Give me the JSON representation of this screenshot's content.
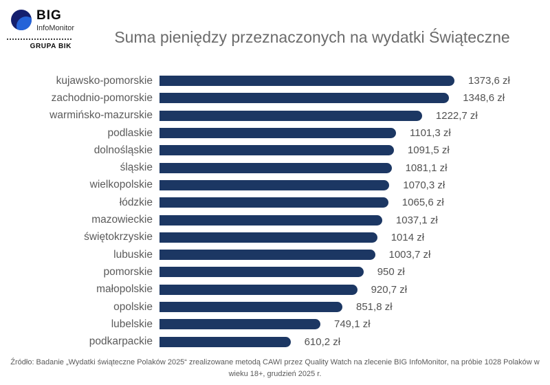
{
  "logo": {
    "big": "BIG",
    "infomonitor": "InfoMonitor",
    "grupa": "GRUPA BIK"
  },
  "header": {
    "title": "Suma pieniędzy przeznaczonych na wydatki Świąteczne"
  },
  "chart_data": {
    "type": "bar",
    "orientation": "horizontal",
    "title": "Suma pieniędzy przeznaczonych na wydatki Świąteczne",
    "unit": "zł",
    "xlim": [
      0,
      1400
    ],
    "grid": false,
    "bar_color": "#1c3763",
    "categories": [
      "kujawsko-pomorskie",
      "zachodnio-pomorskie",
      "warmińsko-mazurskie",
      "podlaskie",
      "dolnośląskie",
      "śląskie",
      "wielkopolskie",
      "łódzkie",
      "mazowieckie",
      "świętokrzyskie",
      "lubuskie",
      "pomorskie",
      "małopolskie",
      "opolskie",
      "lubelskie",
      "podkarpackie"
    ],
    "values": [
      1373.6,
      1348.6,
      1222.7,
      1101.3,
      1091.5,
      1081.1,
      1070.3,
      1065.6,
      1037.1,
      1014,
      1003.7,
      950,
      920.7,
      851.8,
      749.1,
      610.2
    ],
    "value_labels": [
      "1373,6 zł",
      "1348,6 zł",
      "1222,7 zł",
      "1101,3 zł",
      "1091,5 zł",
      "1081,1 zł",
      "1070,3 zł",
      "1065,6 zł",
      "1037,1 zł",
      "1014 zł",
      "1003,7 zł",
      "950 zł",
      "920,7 zł",
      "851,8 zł",
      "749,1 zł",
      "610,2 zł"
    ]
  },
  "footer": {
    "lines": [
      "Źródło: Badanie „Wydatki świąteczne Polaków 2025“ zrealizowane metodą CAWI przez Quality Watch na zlecenie BIG InfoMonitor, na próbie 1028 Polaków w",
      "wieku 18+, grudzień 2025 r."
    ]
  },
  "colors": {
    "bar": "#1c3763",
    "title_text": "#6b6b6b",
    "label_text": "#5a5a5a",
    "logo_dark_blue": "#141f6e",
    "logo_light_blue": "#2563d8"
  }
}
